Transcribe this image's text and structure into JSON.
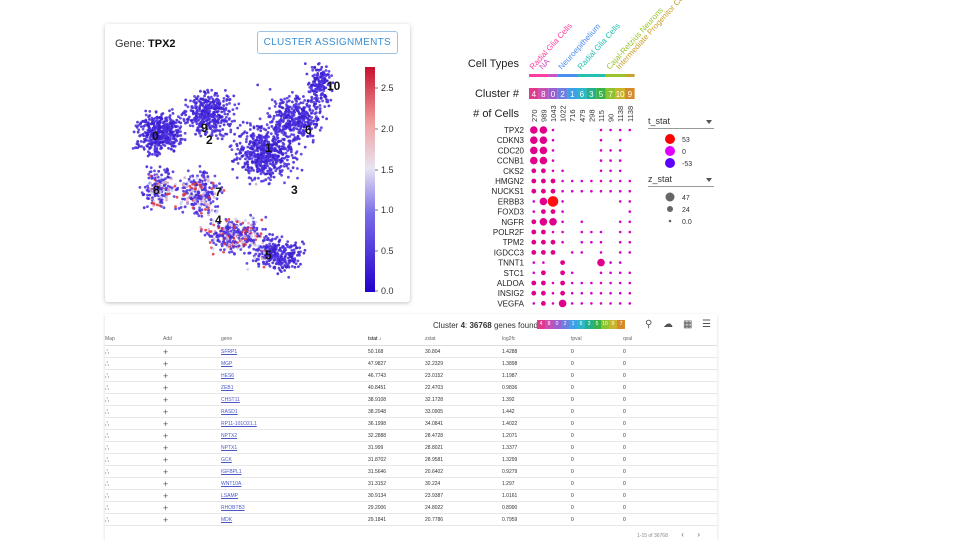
{
  "umap_card": {
    "gene_prefix": "Gene:",
    "gene_name": "TPX2",
    "cluster_button": "CLUSTER ASSIGNMENTS",
    "colorbar_ticks": [
      "2.5",
      "2.0",
      "1.5",
      "1.0",
      "0.5",
      "0.0"
    ],
    "cluster_labels": [
      "0",
      "1",
      "2",
      "3",
      "4",
      "5",
      "6",
      "7",
      "8",
      "9",
      "10"
    ]
  },
  "dotplot": {
    "cell_types_label": "Cell Types",
    "cluster_num_label": "Cluster #",
    "num_cells_label": "# of Cells",
    "cell_types": [
      "Radial Glia Cells",
      "NA",
      "Neuroepithelium",
      "Radial Glia Cells",
      "Cajal-Retzius Neurons",
      "Intermediate Progenitor Cells"
    ],
    "clusters": [
      "4",
      "8",
      "0",
      "2",
      "1",
      "6",
      "3",
      "5",
      "7",
      "10",
      "9"
    ],
    "cluster_colors": [
      "#e03a8c",
      "#c84fb4",
      "#9a60d0",
      "#6f7fe0",
      "#3ea0e6",
      "#2cb6c8",
      "#22b18a",
      "#3ab24a",
      "#8ec330",
      "#c9b52c",
      "#d68a2a"
    ],
    "cell_counts": [
      "270",
      "989",
      "1043",
      "1022",
      "716",
      "479",
      "298",
      "115",
      "90",
      "1138",
      "1138"
    ],
    "genes": [
      "TPX2",
      "CDKN3",
      "CDC20",
      "CCNB1",
      "CKS2",
      "HMGN2",
      "NUCKS1",
      "ERBB3",
      "FOXD3",
      "NGFR",
      "POLR2F",
      "TPM2",
      "IGDCC3",
      "TNNT1",
      "STC1",
      "ALDOA",
      "INSIG2",
      "VEGFA"
    ],
    "sizes": [
      [
        3,
        3,
        1,
        0,
        0,
        0,
        0,
        1,
        1,
        1,
        1
      ],
      [
        3,
        3,
        1,
        0,
        0,
        0,
        0,
        1,
        0,
        1,
        0
      ],
      [
        3,
        3,
        1,
        0,
        0,
        0,
        0,
        1,
        1,
        1,
        0
      ],
      [
        3,
        3,
        1,
        0,
        0,
        0,
        0,
        1,
        1,
        1,
        0
      ],
      [
        2,
        2,
        1,
        1,
        0,
        0,
        0,
        1,
        1,
        1,
        0
      ],
      [
        2,
        2,
        2,
        1,
        1,
        1,
        1,
        1,
        1,
        1,
        1
      ],
      [
        2,
        2,
        2,
        1,
        1,
        1,
        1,
        1,
        1,
        1,
        1
      ],
      [
        1,
        3,
        4,
        1,
        0,
        0,
        0,
        0,
        0,
        1,
        1
      ],
      [
        1,
        2,
        2,
        1,
        0,
        0,
        0,
        0,
        0,
        0,
        1
      ],
      [
        2,
        3,
        3,
        1,
        0,
        1,
        0,
        0,
        0,
        1,
        1
      ],
      [
        2,
        2,
        1,
        1,
        0,
        1,
        1,
        1,
        0,
        1,
        1
      ],
      [
        2,
        2,
        2,
        1,
        0,
        1,
        1,
        1,
        0,
        1,
        1
      ],
      [
        2,
        2,
        2,
        0,
        1,
        1,
        0,
        1,
        0,
        1,
        1
      ],
      [
        1,
        1,
        0,
        2,
        0,
        0,
        0,
        3,
        1,
        1,
        0
      ],
      [
        1,
        2,
        0,
        2,
        1,
        0,
        0,
        1,
        1,
        1,
        1
      ],
      [
        2,
        2,
        1,
        2,
        1,
        1,
        1,
        1,
        1,
        1,
        1
      ],
      [
        2,
        2,
        1,
        2,
        1,
        1,
        1,
        1,
        1,
        1,
        1
      ],
      [
        1,
        2,
        1,
        3,
        1,
        1,
        1,
        1,
        1,
        1,
        1
      ]
    ],
    "t_stat_label": "t_stat",
    "t_stat_values": [
      "53",
      "0",
      "-53"
    ],
    "t_stat_colors": [
      "#ff0000",
      "#e000ff",
      "#5b00ff"
    ],
    "z_stat_label": "z_stat",
    "z_stat_values": [
      "47",
      "24",
      "0.0"
    ]
  },
  "table": {
    "title_prefix": "Cluster",
    "title_cluster": "4",
    "title_count": "36768",
    "title_suffix": "genes found",
    "chips": [
      "4",
      "8",
      "0",
      "2",
      "1",
      "6",
      "3",
      "5",
      "10",
      "9",
      "7"
    ],
    "columns": [
      "Map",
      "Add",
      "gene",
      "tstat",
      "zstat",
      "log2fc",
      "tpval",
      "qval"
    ],
    "sort_arrow": "↓",
    "rows": [
      [
        "SFRP1",
        "50.168",
        "30.804",
        "1.4288",
        "0",
        "0"
      ],
      [
        "MGP",
        "47.9827",
        "32.2329",
        "1.3898",
        "0",
        "0"
      ],
      [
        "HES6",
        "46.7743",
        "23.0152",
        "1.1987",
        "0",
        "0"
      ],
      [
        "ZEB1",
        "40.8451",
        "22.4703",
        "0.9836",
        "0",
        "0"
      ],
      [
        "CHST11",
        "38.9108",
        "32.1728",
        "1.392",
        "0",
        "0"
      ],
      [
        "RASD1",
        "38.2048",
        "33.0905",
        "1.442",
        "0",
        "0"
      ],
      [
        "RP11-101O21.1",
        "36.1998",
        "34.0841",
        "1.4022",
        "0",
        "0"
      ],
      [
        "NPTX2",
        "32.2888",
        "28.4728",
        "1.2071",
        "0",
        "0"
      ],
      [
        "NPTX1",
        "31.999",
        "28.8021",
        "1.3377",
        "0",
        "0"
      ],
      [
        "GCK",
        "31.8702",
        "28.9581",
        "1.3299",
        "0",
        "0"
      ],
      [
        "IGFBPL1",
        "31.5646",
        "20.6402",
        "0.9279",
        "0",
        "0"
      ],
      [
        "WNT10A",
        "31.3152",
        "30.224",
        "1.297",
        "0",
        "0"
      ],
      [
        "LSAMP",
        "30.9134",
        "23.9387",
        "1.0161",
        "0",
        "0"
      ],
      [
        "RHOBTB3",
        "29.2006",
        "24.8022",
        "0.8990",
        "0",
        "0"
      ],
      [
        "MDK",
        "29.1841",
        "20.7786",
        "0.7959",
        "0",
        "0"
      ]
    ],
    "pagination": "1-15 of 36768",
    "prev_icon": "‹",
    "next_icon": "›"
  }
}
